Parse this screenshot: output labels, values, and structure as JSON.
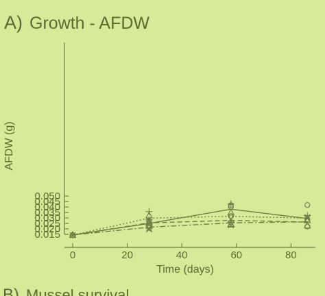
{
  "panel_a": {
    "letter": "A)",
    "title": "Growth - AFDW"
  },
  "panel_b": {
    "letter": "B)",
    "title": "Mussel survival"
  },
  "colors": {
    "background": "#d4ec98",
    "ink": "#5a6a33",
    "line": "#6e7d45"
  },
  "chart_data": {
    "type": "line",
    "title": "Growth - AFDW",
    "xlabel": "Time (days)",
    "ylabel": "AFDW (g)",
    "xlim": [
      -5,
      86
    ],
    "ylim": [
      0.015,
      0.05
    ],
    "xticks": [
      0,
      20,
      40,
      60,
      80
    ],
    "yticks": [
      0.015,
      0.02,
      0.025,
      0.03,
      0.035,
      0.04,
      0.045,
      0.05
    ],
    "x": [
      0,
      28,
      58,
      86
    ],
    "series": [
      {
        "style": "solid",
        "marker": "+",
        "values": [
          0.0144,
          0.025,
          0.038,
          0.0295
        ],
        "points": [
          [
            0,
            0.0143
          ],
          [
            28,
            0.0358
          ],
          [
            28,
            0.0282
          ],
          [
            58,
            0.043
          ],
          [
            58,
            0.0263
          ],
          [
            86,
            0.0322
          ]
        ]
      },
      {
        "style": "dotted",
        "marker": "o",
        "values": [
          0.0144,
          0.0298,
          0.0315,
          0.0298
        ],
        "points": [
          [
            0,
            0.0143
          ],
          [
            28,
            0.027
          ],
          [
            28,
            0.0209
          ],
          [
            58,
            0.0417
          ],
          [
            58,
            0.0402
          ],
          [
            58,
            0.0317
          ],
          [
            86,
            0.0418
          ],
          [
            86,
            0.0287
          ],
          [
            86,
            0.0221
          ]
        ]
      },
      {
        "style": "dashed",
        "marker": "x",
        "values": [
          0.0144,
          0.0255,
          0.0278,
          0.0262
        ],
        "points": [
          [
            0,
            0.0143
          ],
          [
            28,
            0.0195
          ],
          [
            28,
            0.0203
          ],
          [
            58,
            0.029
          ],
          [
            58,
            0.0233
          ],
          [
            86,
            0.0308
          ],
          [
            86,
            0.0295
          ]
        ]
      },
      {
        "style": "dashdot",
        "marker": "triangle",
        "values": [
          0.0144,
          0.0215,
          0.0255,
          0.0265
        ],
        "points": [
          [
            0,
            0.0143
          ],
          [
            28,
            0.0322
          ],
          [
            28,
            0.0262
          ],
          [
            28,
            0.025
          ],
          [
            28,
            0.0228
          ],
          [
            58,
            0.0348
          ],
          [
            58,
            0.0243
          ],
          [
            58,
            0.0238
          ],
          [
            86,
            0.0278
          ],
          [
            86,
            0.023
          ]
        ]
      }
    ]
  }
}
